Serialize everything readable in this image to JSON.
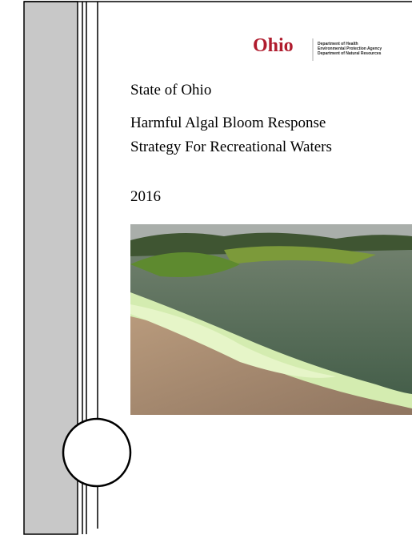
{
  "logo": {
    "wordmark": "Ohio",
    "departments": [
      "Department of Health",
      "Environmental Protection Agency",
      "Department of Natural Resources"
    ]
  },
  "header": {
    "state": "State of Ohio",
    "title_lines": [
      "Harmful Algal Bloom Response",
      "Strategy For Recreational Waters"
    ],
    "year": "2016"
  }
}
